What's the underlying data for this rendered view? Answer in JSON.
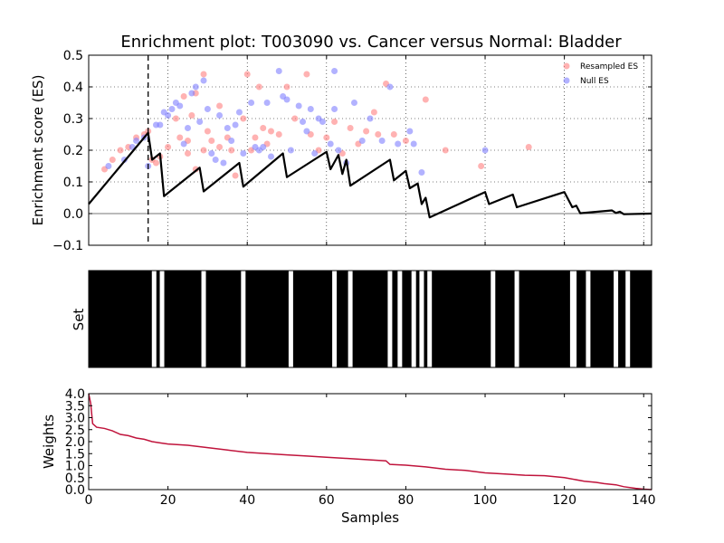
{
  "chart_data": [
    {
      "type": "line+scatter",
      "title": "Enrichment plot: T003090 vs. Cancer versus Normal: Bladder",
      "ylabel": "Enrichment score (ES)",
      "xlim": [
        0,
        142
      ],
      "ylim": [
        -0.1,
        0.5
      ],
      "yticks": [
        -0.1,
        0.0,
        0.1,
        0.2,
        0.3,
        0.4,
        0.5
      ],
      "ytick_labels": [
        "−0.1",
        "0.0",
        "0.1",
        "0.2",
        "0.3",
        "0.4",
        "0.5"
      ],
      "xticks": [
        0,
        20,
        40,
        60,
        80,
        100,
        120,
        140
      ],
      "grid": true,
      "zero_line": true,
      "vline_x": 15,
      "legend": {
        "placement": "top-right",
        "entries": [
          {
            "label": "Resampled ES",
            "color": "#ff7f7f"
          },
          {
            "label": "Null ES",
            "color": "#7f7fff"
          }
        ]
      },
      "es_line": [
        [
          0,
          0.03
        ],
        [
          15,
          0.255
        ],
        [
          16,
          0.17
        ],
        [
          18,
          0.19
        ],
        [
          19,
          0.055
        ],
        [
          28,
          0.145
        ],
        [
          29,
          0.07
        ],
        [
          38,
          0.16
        ],
        [
          39,
          0.085
        ],
        [
          49,
          0.19
        ],
        [
          50,
          0.115
        ],
        [
          60,
          0.195
        ],
        [
          61,
          0.14
        ],
        [
          63,
          0.185
        ],
        [
          64,
          0.125
        ],
        [
          65,
          0.17
        ],
        [
          66,
          0.088
        ],
        [
          76,
          0.17
        ],
        [
          77,
          0.105
        ],
        [
          80,
          0.135
        ],
        [
          81,
          0.08
        ],
        [
          83,
          0.095
        ],
        [
          84,
          0.03
        ],
        [
          85,
          0.05
        ],
        [
          86,
          -0.012
        ],
        [
          100,
          0.068
        ],
        [
          101,
          0.03
        ],
        [
          107,
          0.06
        ],
        [
          108,
          0.02
        ],
        [
          120,
          0.068
        ],
        [
          122,
          0.02
        ],
        [
          123,
          0.025
        ],
        [
          124,
          0.001
        ],
        [
          132,
          0.01
        ],
        [
          133,
          0.002
        ],
        [
          134,
          0.006
        ],
        [
          135,
          -0.002
        ],
        [
          142,
          0.0
        ]
      ],
      "resampled_es": [
        [
          4,
          0.14
        ],
        [
          6,
          0.17
        ],
        [
          8,
          0.2
        ],
        [
          10,
          0.21
        ],
        [
          12,
          0.24
        ],
        [
          14,
          0.25
        ],
        [
          15,
          0.26
        ],
        [
          16,
          0.17
        ],
        [
          17,
          0.16
        ],
        [
          18,
          0.18
        ],
        [
          20,
          0.21
        ],
        [
          22,
          0.3
        ],
        [
          23,
          0.24
        ],
        [
          24,
          0.37
        ],
        [
          25,
          0.19
        ],
        [
          25,
          0.23
        ],
        [
          26,
          0.31
        ],
        [
          27,
          0.38
        ],
        [
          27,
          0.14
        ],
        [
          29,
          0.44
        ],
        [
          29,
          0.2
        ],
        [
          30,
          0.26
        ],
        [
          31,
          0.23
        ],
        [
          33,
          0.34
        ],
        [
          33,
          0.21
        ],
        [
          35,
          0.24
        ],
        [
          36,
          0.2
        ],
        [
          37,
          0.12
        ],
        [
          39,
          0.3
        ],
        [
          40,
          0.44
        ],
        [
          41,
          0.2
        ],
        [
          42,
          0.24
        ],
        [
          43,
          0.4
        ],
        [
          44,
          0.27
        ],
        [
          45,
          0.22
        ],
        [
          46,
          0.26
        ],
        [
          48,
          0.25
        ],
        [
          50,
          0.4
        ],
        [
          52,
          0.3
        ],
        [
          55,
          0.44
        ],
        [
          56,
          0.25
        ],
        [
          58,
          0.2
        ],
        [
          60,
          0.24
        ],
        [
          62,
          0.29
        ],
        [
          64,
          0.19
        ],
        [
          66,
          0.27
        ],
        [
          68,
          0.22
        ],
        [
          70,
          0.26
        ],
        [
          72,
          0.32
        ],
        [
          73,
          0.25
        ],
        [
          75,
          0.41
        ],
        [
          77,
          0.25
        ],
        [
          80,
          0.23
        ],
        [
          85,
          0.36
        ],
        [
          90,
          0.2
        ],
        [
          99,
          0.15
        ],
        [
          111,
          0.21
        ]
      ],
      "null_es": [
        [
          5,
          0.15
        ],
        [
          9,
          0.17
        ],
        [
          11,
          0.21
        ],
        [
          12,
          0.23
        ],
        [
          14,
          0.24
        ],
        [
          15,
          0.15
        ],
        [
          17,
          0.28
        ],
        [
          18,
          0.28
        ],
        [
          19,
          0.32
        ],
        [
          20,
          0.31
        ],
        [
          21,
          0.33
        ],
        [
          22,
          0.35
        ],
        [
          23,
          0.34
        ],
        [
          24,
          0.22
        ],
        [
          25,
          0.27
        ],
        [
          26,
          0.38
        ],
        [
          27,
          0.4
        ],
        [
          28,
          0.29
        ],
        [
          29,
          0.42
        ],
        [
          30,
          0.33
        ],
        [
          31,
          0.19
        ],
        [
          32,
          0.17
        ],
        [
          33,
          0.31
        ],
        [
          34,
          0.16
        ],
        [
          35,
          0.27
        ],
        [
          36,
          0.23
        ],
        [
          37,
          0.28
        ],
        [
          38,
          0.32
        ],
        [
          39,
          0.19
        ],
        [
          41,
          0.35
        ],
        [
          42,
          0.21
        ],
        [
          43,
          0.2
        ],
        [
          44,
          0.21
        ],
        [
          45,
          0.35
        ],
        [
          46,
          0.18
        ],
        [
          48,
          0.45
        ],
        [
          49,
          0.37
        ],
        [
          50,
          0.36
        ],
        [
          51,
          0.2
        ],
        [
          53,
          0.34
        ],
        [
          54,
          0.29
        ],
        [
          55,
          0.26
        ],
        [
          56,
          0.33
        ],
        [
          57,
          0.19
        ],
        [
          58,
          0.3
        ],
        [
          59,
          0.29
        ],
        [
          61,
          0.22
        ],
        [
          62,
          0.45
        ],
        [
          62,
          0.33
        ],
        [
          63,
          0.2
        ],
        [
          65,
          0.16
        ],
        [
          67,
          0.35
        ],
        [
          69,
          0.23
        ],
        [
          71,
          0.3
        ],
        [
          74,
          0.23
        ],
        [
          76,
          0.4
        ],
        [
          78,
          0.22
        ],
        [
          81,
          0.26
        ],
        [
          82,
          0.22
        ],
        [
          84,
          0.13
        ],
        [
          100,
          0.2
        ]
      ]
    },
    {
      "type": "barcode",
      "ylabel": "Set",
      "xlim": [
        0,
        142
      ],
      "gap_positions": [
        16.5,
        18.5,
        29,
        39,
        51,
        62,
        66,
        76,
        78.5,
        82,
        84,
        86,
        102,
        108,
        122,
        122.5,
        126,
        133,
        136
      ]
    },
    {
      "type": "line",
      "xlabel": "Samples",
      "ylabel": "Weights",
      "xlim": [
        0,
        142
      ],
      "ylim": [
        0,
        4.0
      ],
      "yticks": [
        0.0,
        0.5,
        1.0,
        1.5,
        2.0,
        2.5,
        3.0,
        3.5,
        4.0
      ],
      "xticks": [
        0,
        20,
        40,
        60,
        80,
        100,
        120,
        140
      ],
      "color": "#c0143c",
      "values": [
        [
          0,
          4.0
        ],
        [
          0.5,
          3.6
        ],
        [
          1,
          2.75
        ],
        [
          2,
          2.6
        ],
        [
          4,
          2.55
        ],
        [
          6,
          2.45
        ],
        [
          8,
          2.3
        ],
        [
          10,
          2.25
        ],
        [
          12,
          2.15
        ],
        [
          14,
          2.1
        ],
        [
          16,
          2.0
        ],
        [
          18,
          1.95
        ],
        [
          20,
          1.9
        ],
        [
          25,
          1.85
        ],
        [
          30,
          1.75
        ],
        [
          35,
          1.65
        ],
        [
          40,
          1.55
        ],
        [
          45,
          1.5
        ],
        [
          50,
          1.45
        ],
        [
          55,
          1.4
        ],
        [
          60,
          1.35
        ],
        [
          65,
          1.3
        ],
        [
          70,
          1.25
        ],
        [
          75,
          1.2
        ],
        [
          76,
          1.05
        ],
        [
          80,
          1.02
        ],
        [
          85,
          0.95
        ],
        [
          90,
          0.85
        ],
        [
          95,
          0.8
        ],
        [
          100,
          0.7
        ],
        [
          105,
          0.65
        ],
        [
          110,
          0.6
        ],
        [
          115,
          0.58
        ],
        [
          120,
          0.5
        ],
        [
          125,
          0.35
        ],
        [
          128,
          0.3
        ],
        [
          130,
          0.25
        ],
        [
          133,
          0.2
        ],
        [
          135,
          0.12
        ],
        [
          138,
          0.05
        ],
        [
          140,
          0.02
        ],
        [
          142,
          0.0
        ]
      ]
    }
  ]
}
